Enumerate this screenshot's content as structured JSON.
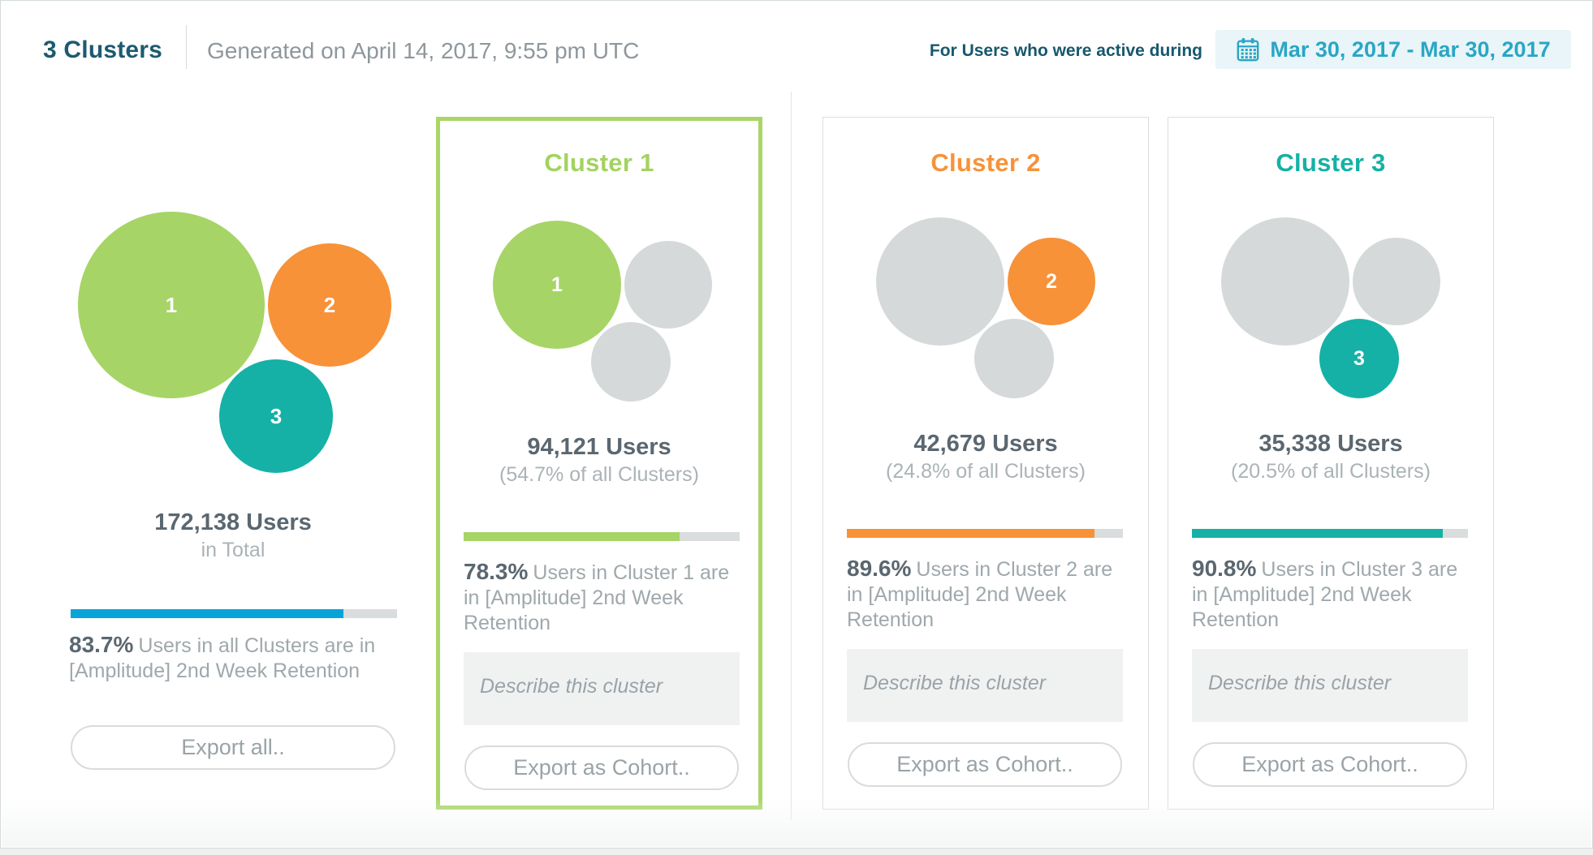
{
  "header": {
    "title": "3 Clusters",
    "generated": "Generated on April 14, 2017, 9:55 pm UTC",
    "active_label": "For Users who were active during",
    "date_range": "Mar 30, 2017 - Mar 30, 2017"
  },
  "colors": {
    "title_teal": "#1d5a70",
    "cluster1_green": "#a7d466",
    "cluster2_orange": "#f79239",
    "cluster3_teal": "#15b1a6",
    "summary_bar_blue": "#09a4d7",
    "inactive_gray": "#d5d9da",
    "date_pill_bg": "#e9f5f8",
    "date_pill_text": "#2aa6c5"
  },
  "summary": {
    "users": "172,138 Users",
    "subtitle": "in Total",
    "percent": "83.7%",
    "percent_text": "Users in all Clusters are in [Amplitude] 2nd Week Retention",
    "bar_percent": 83.7,
    "export_label": "Export all.."
  },
  "clusters": [
    {
      "id": "1",
      "title": "Cluster 1",
      "users": "94,121 Users",
      "share": "(54.7% of all Clusters)",
      "percent": "78.3%",
      "percent_text": "Users in Cluster 1 are in [Amplitude] 2nd Week Retention",
      "bar_percent": 78.3,
      "describe_placeholder": "Describe this cluster",
      "export_label": "Export as Cohort..",
      "selected": true
    },
    {
      "id": "2",
      "title": "Cluster 2",
      "users": "42,679 Users",
      "share": "(24.8% of all Clusters)",
      "percent": "89.6%",
      "percent_text": "Users in Cluster 2 are in [Amplitude] 2nd Week Retention",
      "bar_percent": 89.6,
      "describe_placeholder": "Describe this cluster",
      "export_label": "Export as Cohort..",
      "selected": false
    },
    {
      "id": "3",
      "title": "Cluster 3",
      "users": "35,338 Users",
      "share": "(20.5% of all Clusters)",
      "percent": "90.8%",
      "percent_text": "Users in Cluster 3 are in [Amplitude] 2nd Week Retention",
      "bar_percent": 90.8,
      "describe_placeholder": "Describe this cluster",
      "export_label": "Export as Cohort..",
      "selected": false
    }
  ]
}
